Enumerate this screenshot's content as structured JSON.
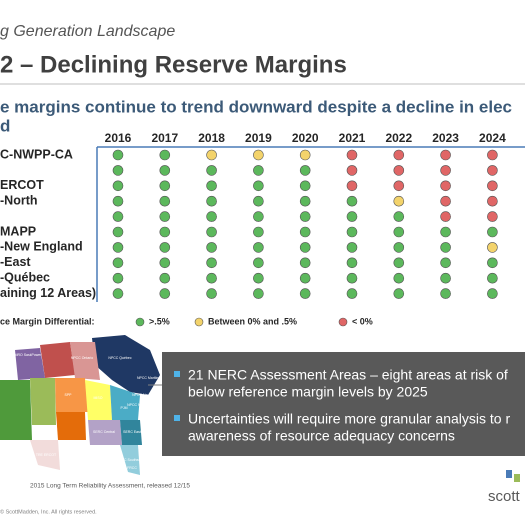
{
  "header": {
    "section": "g Generation Landscape",
    "title": "2 – Declining Reserve Margins",
    "subtitle": [
      "e margins continue to trend downward despite a decline in elec",
      "d"
    ]
  },
  "table": {
    "columns": [
      "2016",
      "2017",
      "2018",
      "2019",
      "2020",
      "2021",
      "2022",
      "2023",
      "2024"
    ],
    "rows": [
      {
        "label": "C-NWPP-CA",
        "cells": [
          "#5cb85c",
          "#5cb85c",
          "#f3d36b",
          "#f3d36b",
          "#f3d36b",
          "#e06666",
          "#e06666",
          "#e06666",
          "#e06666"
        ]
      },
      {
        "label": null,
        "cells": [
          "#5cb85c",
          "#5cb85c",
          "#5cb85c",
          "#5cb85c",
          "#5cb85c",
          "#e06666",
          "#e06666",
          "#e06666",
          "#e06666"
        ]
      },
      {
        "label": "ERCOT",
        "cells": [
          "#5cb85c",
          "#5cb85c",
          "#5cb85c",
          "#5cb85c",
          "#5cb85c",
          "#e06666",
          "#e06666",
          "#e06666",
          "#e06666"
        ]
      },
      {
        "label": "-North",
        "cells": [
          "#5cb85c",
          "#5cb85c",
          "#5cb85c",
          "#5cb85c",
          "#5cb85c",
          "#5cb85c",
          "#f3d36b",
          "#e06666",
          "#e06666"
        ]
      },
      {
        "label": null,
        "cells": [
          "#5cb85c",
          "#5cb85c",
          "#5cb85c",
          "#5cb85c",
          "#5cb85c",
          "#5cb85c",
          "#5cb85c",
          "#e06666",
          "#e06666"
        ]
      },
      {
        "label": "MAPP",
        "cells": [
          "#5cb85c",
          "#5cb85c",
          "#5cb85c",
          "#5cb85c",
          "#5cb85c",
          "#5cb85c",
          "#5cb85c",
          "#5cb85c",
          "#5cb85c"
        ]
      },
      {
        "label": "-New England",
        "cells": [
          "#5cb85c",
          "#5cb85c",
          "#5cb85c",
          "#5cb85c",
          "#5cb85c",
          "#5cb85c",
          "#5cb85c",
          "#5cb85c",
          "#f3d36b"
        ]
      },
      {
        "label": "-East",
        "cells": [
          "#5cb85c",
          "#5cb85c",
          "#5cb85c",
          "#5cb85c",
          "#5cb85c",
          "#5cb85c",
          "#5cb85c",
          "#5cb85c",
          "#5cb85c"
        ]
      },
      {
        "label": "-Québec",
        "cells": [
          "#5cb85c",
          "#5cb85c",
          "#5cb85c",
          "#5cb85c",
          "#5cb85c",
          "#5cb85c",
          "#5cb85c",
          "#5cb85c",
          "#5cb85c"
        ]
      },
      {
        "label": "aining 12 Areas)",
        "cells": [
          "#5cb85c",
          "#5cb85c",
          "#5cb85c",
          "#5cb85c",
          "#5cb85c",
          "#5cb85c",
          "#5cb85c",
          "#5cb85c",
          "#5cb85c"
        ]
      }
    ]
  },
  "legend": {
    "title": "ce Margin Differential:",
    "items": [
      {
        "label": ">.5%",
        "color": "#5cb85c"
      },
      {
        "label": "Between 0% and .5%",
        "color": "#f3d36b"
      },
      {
        "label": "< 0%",
        "color": "#e06666"
      }
    ]
  },
  "map": {
    "labels": [
      "NPCC Québec",
      "NPCC Ontario",
      "NPCC Maritimes",
      "NPCC New England",
      "NPCC New York",
      "MISO",
      "SPP",
      "PJM",
      "SERC East",
      "SERC Central",
      "SERC Southeast",
      "TRE ERCOT",
      "FRCC",
      "MRO SaskPower"
    ]
  },
  "callout": {
    "bullets": [
      [
        "21 NERC Assessment Areas – eight areas at risk of",
        "below reference margin levels by 2025"
      ],
      [
        "Uncertainties will require more granular analysis to r",
        "awareness of resource adequacy concerns"
      ]
    ]
  },
  "footer": {
    "source": "2015 Long Term Reliability Assessment, released 12/15",
    "copyright": "© ScottMadden, Inc. All rights reserved.",
    "logo": "scott"
  }
}
